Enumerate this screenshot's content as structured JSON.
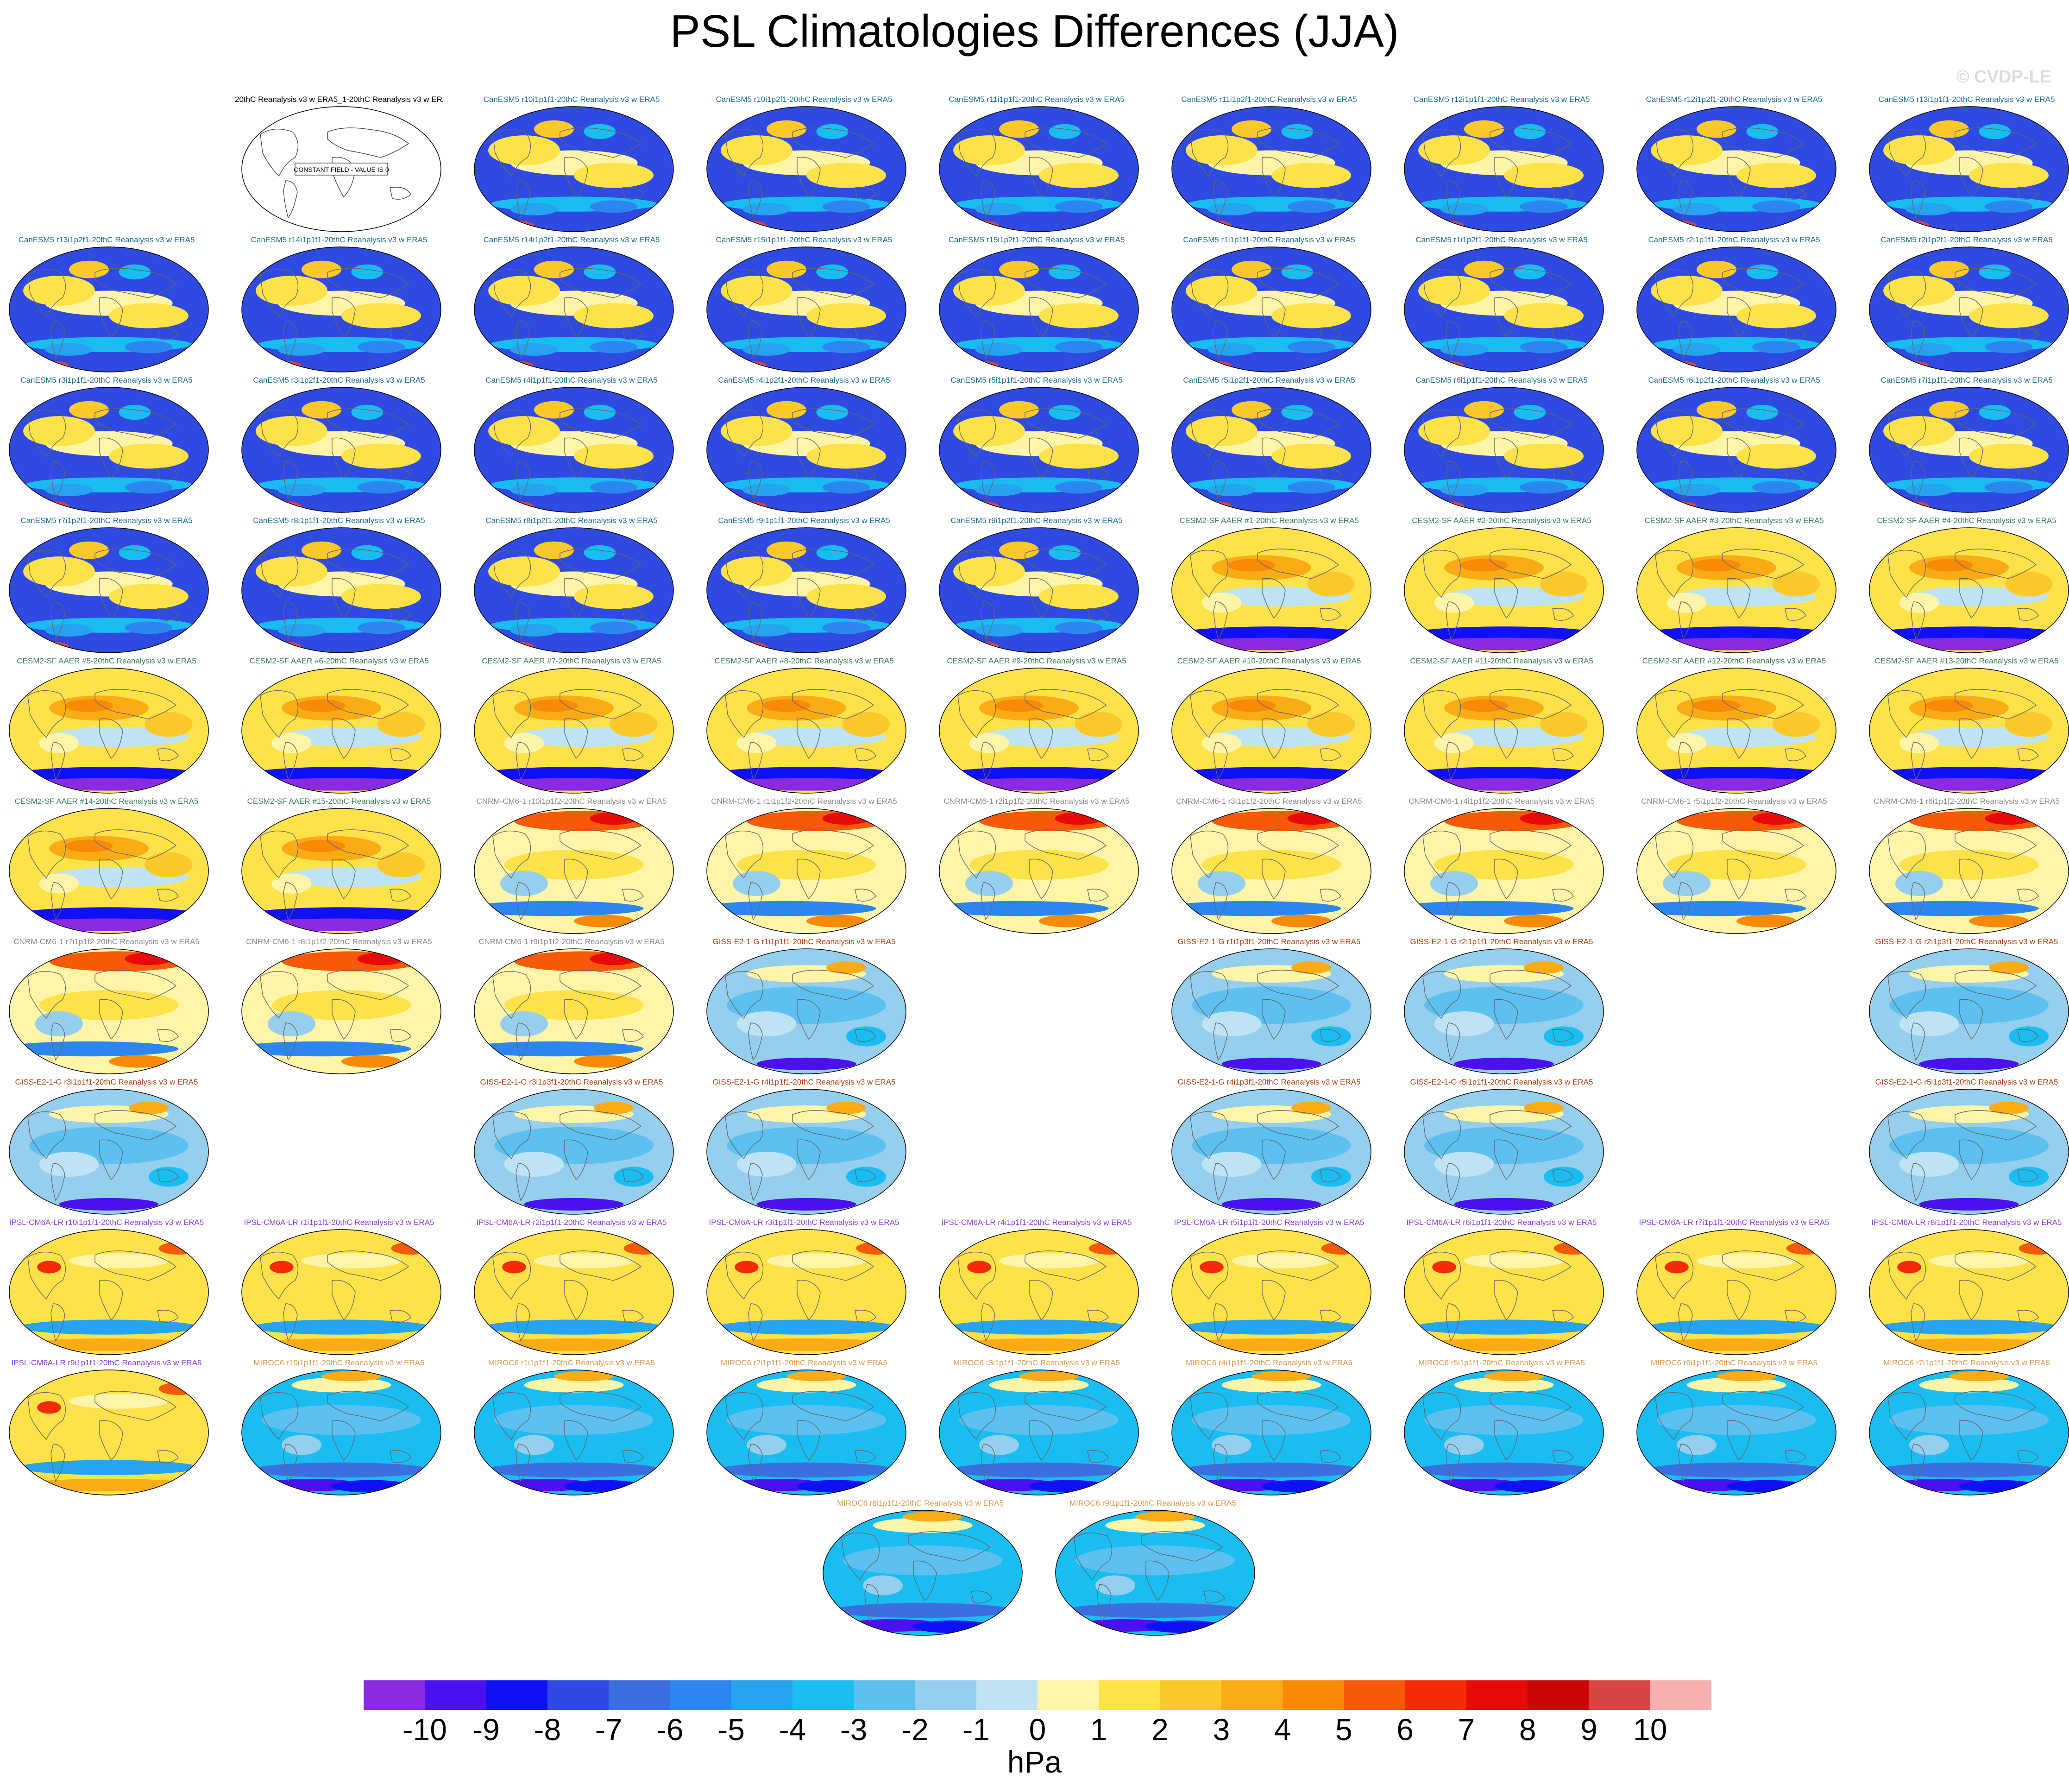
{
  "title": "PSL Climatologies Differences (JJA)",
  "watermark": "© CVDP-LE",
  "colors": {
    "canesm5": "#1a6e8f",
    "cesm2": "#3b7d5a",
    "cnrm": "#8a8a8a",
    "giss": "#b0400f",
    "ipsl": "#8a3fd6",
    "miroc": "#d79a4f",
    "obs": "#000000"
  },
  "panels": [
    {
      "label": "20thC Reanalysis v3 w ERA5_1-20thC Reanalysis v3 w ERA5",
      "row": 0,
      "col": 1,
      "family": "obs",
      "constant": true,
      "note": "CONSTANT FIELD - VALUE IS 0"
    },
    {
      "label": "CanESM5 r10i1p1f1-20thC Reanalysis v3 w ERA5",
      "row": 0,
      "col": 2,
      "family": "canesm5"
    },
    {
      "label": "CanESM5 r10i1p2f1-20thC Reanalysis v3 w ERA5",
      "row": 0,
      "col": 3,
      "family": "canesm5"
    },
    {
      "label": "CanESM5 r11i1p1f1-20thC Reanalysis v3 w ERA5",
      "row": 0,
      "col": 4,
      "family": "canesm5"
    },
    {
      "label": "CanESM5 r11i1p2f1-20thC Reanalysis v3 w ERA5",
      "row": 0,
      "col": 5,
      "family": "canesm5"
    },
    {
      "label": "CanESM5 r12i1p1f1-20thC Reanalysis v3 w ERA5",
      "row": 0,
      "col": 6,
      "family": "canesm5"
    },
    {
      "label": "CanESM5 r12i1p2f1-20thC Reanalysis v3 w ERA5",
      "row": 0,
      "col": 7,
      "family": "canesm5"
    },
    {
      "label": "CanESM5 r13i1p1f1-20thC Reanalysis v3 w ERA5",
      "row": 0,
      "col": 8,
      "family": "canesm5"
    },
    {
      "label": "CanESM5 r13i1p2f1-20thC Reanalysis v3 w ERA5",
      "row": 1,
      "col": 0,
      "family": "canesm5"
    },
    {
      "label": "CanESM5 r14i1p1f1-20thC Reanalysis v3 w ERA5",
      "row": 1,
      "col": 1,
      "family": "canesm5"
    },
    {
      "label": "CanESM5 r14i1p2f1-20thC Reanalysis v3 w ERA5",
      "row": 1,
      "col": 2,
      "family": "canesm5"
    },
    {
      "label": "CanESM5 r15i1p1f1-20thC Reanalysis v3 w ERA5",
      "row": 1,
      "col": 3,
      "family": "canesm5"
    },
    {
      "label": "CanESM5 r15i1p2f1-20thC Reanalysis v3 w ERA5",
      "row": 1,
      "col": 4,
      "family": "canesm5"
    },
    {
      "label": "CanESM5 r1i1p1f1-20thC Reanalysis v3 w ERA5",
      "row": 1,
      "col": 5,
      "family": "canesm5"
    },
    {
      "label": "CanESM5 r1i1p2f1-20thC Reanalysis v3 w ERA5",
      "row": 1,
      "col": 6,
      "family": "canesm5"
    },
    {
      "label": "CanESM5 r2i1p1f1-20thC Reanalysis v3 w ERA5",
      "row": 1,
      "col": 7,
      "family": "canesm5"
    },
    {
      "label": "CanESM5 r2i1p2f1-20thC Reanalysis v3 w ERA5",
      "row": 1,
      "col": 8,
      "family": "canesm5"
    },
    {
      "label": "CanESM5 r3i1p1f1-20thC Reanalysis v3 w ERA5",
      "row": 2,
      "col": 0,
      "family": "canesm5"
    },
    {
      "label": "CanESM5 r3i1p2f1-20thC Reanalysis v3 w ERA5",
      "row": 2,
      "col": 1,
      "family": "canesm5"
    },
    {
      "label": "CanESM5 r4i1p1f1-20thC Reanalysis v3 w ERA5",
      "row": 2,
      "col": 2,
      "family": "canesm5"
    },
    {
      "label": "CanESM5 r4i1p2f1-20thC Reanalysis v3 w ERA5",
      "row": 2,
      "col": 3,
      "family": "canesm5"
    },
    {
      "label": "CanESM5 r5i1p1f1-20thC Reanalysis v3 w ERA5",
      "row": 2,
      "col": 4,
      "family": "canesm5"
    },
    {
      "label": "CanESM5 r5i1p2f1-20thC Reanalysis v3 w ERA5",
      "row": 2,
      "col": 5,
      "family": "canesm5"
    },
    {
      "label": "CanESM5 r6i1p1f1-20thC Reanalysis v3 w ERA5",
      "row": 2,
      "col": 6,
      "family": "canesm5"
    },
    {
      "label": "CanESM5 r6i1p2f1-20thC Reanalysis v3 w ERA5",
      "row": 2,
      "col": 7,
      "family": "canesm5"
    },
    {
      "label": "CanESM5 r7i1p1f1-20thC Reanalysis v3 w ERA5",
      "row": 2,
      "col": 8,
      "family": "canesm5"
    },
    {
      "label": "CanESM5 r7i1p2f1-20thC Reanalysis v3 w ERA5",
      "row": 3,
      "col": 0,
      "family": "canesm5"
    },
    {
      "label": "CanESM5 r8i1p1f1-20thC Reanalysis v3 w ERA5",
      "row": 3,
      "col": 1,
      "family": "canesm5"
    },
    {
      "label": "CanESM5 r8i1p2f1-20thC Reanalysis v3 w ERA5",
      "row": 3,
      "col": 2,
      "family": "canesm5"
    },
    {
      "label": "CanESM5 r9i1p1f1-20thC Reanalysis v3 w ERA5",
      "row": 3,
      "col": 3,
      "family": "canesm5"
    },
    {
      "label": "CanESM5 r9i1p2f1-20thC Reanalysis v3 w ERA5",
      "row": 3,
      "col": 4,
      "family": "canesm5"
    },
    {
      "label": "CESM2-SF AAER #1-20thC Reanalysis v3 w ERA5",
      "row": 3,
      "col": 5,
      "family": "cesm2"
    },
    {
      "label": "CESM2-SF AAER #2-20thC Reanalysis v3 w ERA5",
      "row": 3,
      "col": 6,
      "family": "cesm2"
    },
    {
      "label": "CESM2-SF AAER #3-20thC Reanalysis v3 w ERA5",
      "row": 3,
      "col": 7,
      "family": "cesm2"
    },
    {
      "label": "CESM2-SF AAER #4-20thC Reanalysis v3 w ERA5",
      "row": 3,
      "col": 8,
      "family": "cesm2"
    },
    {
      "label": "CESM2-SF AAER #5-20thC Reanalysis v3 w ERA5",
      "row": 4,
      "col": 0,
      "family": "cesm2"
    },
    {
      "label": "CESM2-SF AAER #6-20thC Reanalysis v3 w ERA5",
      "row": 4,
      "col": 1,
      "family": "cesm2"
    },
    {
      "label": "CESM2-SF AAER #7-20thC Reanalysis v3 w ERA5",
      "row": 4,
      "col": 2,
      "family": "cesm2"
    },
    {
      "label": "CESM2-SF AAER #8-20thC Reanalysis v3 w ERA5",
      "row": 4,
      "col": 3,
      "family": "cesm2"
    },
    {
      "label": "CESM2-SF AAER #9-20thC Reanalysis v3 w ERA5",
      "row": 4,
      "col": 4,
      "family": "cesm2"
    },
    {
      "label": "CESM2-SF AAER #10-20thC Reanalysis v3 w ERA5",
      "row": 4,
      "col": 5,
      "family": "cesm2"
    },
    {
      "label": "CESM2-SF AAER #11-20thC Reanalysis v3 w ERA5",
      "row": 4,
      "col": 6,
      "family": "cesm2"
    },
    {
      "label": "CESM2-SF AAER #12-20thC Reanalysis v3 w ERA5",
      "row": 4,
      "col": 7,
      "family": "cesm2"
    },
    {
      "label": "CESM2-SF AAER #13-20thC Reanalysis v3 w ERA5",
      "row": 4,
      "col": 8,
      "family": "cesm2"
    },
    {
      "label": "CESM2-SF AAER #14-20thC Reanalysis v3 w ERA5",
      "row": 5,
      "col": 0,
      "family": "cesm2"
    },
    {
      "label": "CESM2-SF AAER #15-20thC Reanalysis v3 w ERA5",
      "row": 5,
      "col": 1,
      "family": "cesm2"
    },
    {
      "label": "CNRM-CM6-1 r10i1p1f2-20thC Reanalysis v3 w ERA5",
      "row": 5,
      "col": 2,
      "family": "cnrm"
    },
    {
      "label": "CNRM-CM6-1 r1i1p1f2-20thC Reanalysis v3 w ERA5",
      "row": 5,
      "col": 3,
      "family": "cnrm"
    },
    {
      "label": "CNRM-CM6-1 r2i1p1f2-20thC Reanalysis v3 w ERA5",
      "row": 5,
      "col": 4,
      "family": "cnrm"
    },
    {
      "label": "CNRM-CM6-1 r3i1p1f2-20thC Reanalysis v3 w ERA5",
      "row": 5,
      "col": 5,
      "family": "cnrm"
    },
    {
      "label": "CNRM-CM6-1 r4i1p1f2-20thC Reanalysis v3 w ERA5",
      "row": 5,
      "col": 6,
      "family": "cnrm"
    },
    {
      "label": "CNRM-CM6-1 r5i1p1f2-20thC Reanalysis v3 w ERA5",
      "row": 5,
      "col": 7,
      "family": "cnrm"
    },
    {
      "label": "CNRM-CM6-1 r6i1p1f2-20thC Reanalysis v3 w ERA5",
      "row": 5,
      "col": 8,
      "family": "cnrm"
    },
    {
      "label": "CNRM-CM6-1 r7i1p1f2-20thC Reanalysis v3 w ERA5",
      "row": 6,
      "col": 0,
      "family": "cnrm"
    },
    {
      "label": "CNRM-CM6-1 r8i1p1f2-20thC Reanalysis v3 w ERA5",
      "row": 6,
      "col": 1,
      "family": "cnrm"
    },
    {
      "label": "CNRM-CM6-1 r9i1p1f2-20thC Reanalysis v3 w ERA5",
      "row": 6,
      "col": 2,
      "family": "cnrm"
    },
    {
      "label": "GISS-E2-1-G r1i1p1f1-20thC Reanalysis v3 w ERA5",
      "row": 6,
      "col": 3,
      "family": "giss"
    },
    {
      "label": "GISS-E2-1-G r1i1p3f1-20thC Reanalysis v3 w ERA5",
      "row": 6,
      "col": 5,
      "family": "giss"
    },
    {
      "label": "GISS-E2-1-G r2i1p1f1-20thC Reanalysis v3 w ERA5",
      "row": 6,
      "col": 6,
      "family": "giss"
    },
    {
      "label": "GISS-E2-1-G r2i1p3f1-20thC Reanalysis v3 w ERA5",
      "row": 6,
      "col": 8,
      "family": "giss"
    },
    {
      "label": "GISS-E2-1-G r3i1p1f1-20thC Reanalysis v3 w ERA5",
      "row": 7,
      "col": 0,
      "family": "giss"
    },
    {
      "label": "GISS-E2-1-G r3i1p3f1-20thC Reanalysis v3 w ERA5",
      "row": 7,
      "col": 2,
      "family": "giss"
    },
    {
      "label": "GISS-E2-1-G r4i1p1f1-20thC Reanalysis v3 w ERA5",
      "row": 7,
      "col": 3,
      "family": "giss"
    },
    {
      "label": "GISS-E2-1-G r4i1p3f1-20thC Reanalysis v3 w ERA5",
      "row": 7,
      "col": 5,
      "family": "giss"
    },
    {
      "label": "GISS-E2-1-G r5i1p1f1-20thC Reanalysis v3 w ERA5",
      "row": 7,
      "col": 6,
      "family": "giss"
    },
    {
      "label": "GISS-E2-1-G r5i1p3f1-20thC Reanalysis v3 w ERA5",
      "row": 7,
      "col": 8,
      "family": "giss"
    },
    {
      "label": "IPSL-CM6A-LR r10i1p1f1-20thC Reanalysis v3 w ERA5",
      "row": 8,
      "col": 0,
      "family": "ipsl"
    },
    {
      "label": "IPSL-CM6A-LR r1i1p1f1-20thC Reanalysis v3 w ERA5",
      "row": 8,
      "col": 1,
      "family": "ipsl"
    },
    {
      "label": "IPSL-CM6A-LR r2i1p1f1-20thC Reanalysis v3 w ERA5",
      "row": 8,
      "col": 2,
      "family": "ipsl"
    },
    {
      "label": "IPSL-CM6A-LR r3i1p1f1-20thC Reanalysis v3 w ERA5",
      "row": 8,
      "col": 3,
      "family": "ipsl"
    },
    {
      "label": "IPSL-CM6A-LR r4i1p1f1-20thC Reanalysis v3 w ERA5",
      "row": 8,
      "col": 4,
      "family": "ipsl"
    },
    {
      "label": "IPSL-CM6A-LR r5i1p1f1-20thC Reanalysis v3 w ERA5",
      "row": 8,
      "col": 5,
      "family": "ipsl"
    },
    {
      "label": "IPSL-CM6A-LR r6i1p1f1-20thC Reanalysis v3 w ERA5",
      "row": 8,
      "col": 6,
      "family": "ipsl"
    },
    {
      "label": "IPSL-CM6A-LR r7i1p1f1-20thC Reanalysis v3 w ERA5",
      "row": 8,
      "col": 7,
      "family": "ipsl"
    },
    {
      "label": "IPSL-CM6A-LR r8i1p1f1-20thC Reanalysis v3 w ERA5",
      "row": 8,
      "col": 8,
      "family": "ipsl"
    },
    {
      "label": "IPSL-CM6A-LR r9i1p1f1-20thC Reanalysis v3 w ERA5",
      "row": 9,
      "col": 0,
      "family": "ipsl"
    },
    {
      "label": "MIROC6 r10i1p1f1-20thC Reanalysis v3 w ERA5",
      "row": 9,
      "col": 1,
      "family": "miroc"
    },
    {
      "label": "MIROC6 r1i1p1f1-20thC Reanalysis v3 w ERA5",
      "row": 9,
      "col": 2,
      "family": "miroc"
    },
    {
      "label": "MIROC6 r2i1p1f1-20thC Reanalysis v3 w ERA5",
      "row": 9,
      "col": 3,
      "family": "miroc"
    },
    {
      "label": "MIROC6 r3i1p1f1-20thC Reanalysis v3 w ERA5",
      "row": 9,
      "col": 4,
      "family": "miroc"
    },
    {
      "label": "MIROC6 r4i1p1f1-20thC Reanalysis v3 w ERA5",
      "row": 9,
      "col": 5,
      "family": "miroc"
    },
    {
      "label": "MIROC6 r5i1p1f1-20thC Reanalysis v3 w ERA5",
      "row": 9,
      "col": 6,
      "family": "miroc"
    },
    {
      "label": "MIROC6 r6i1p1f1-20thC Reanalysis v3 w ERA5",
      "row": 9,
      "col": 7,
      "family": "miroc"
    },
    {
      "label": "MIROC6 r7i1p1f1-20thC Reanalysis v3 w ERA5",
      "row": 9,
      "col": 8,
      "family": "miroc"
    },
    {
      "label": "MIROC6 r8i1p1f1-20thC Reanalysis v3 w ERA5",
      "row": 10,
      "col": 3.5,
      "family": "miroc"
    },
    {
      "label": "MIROC6 r9i1p1f1-20thC Reanalysis v3 w ERA5",
      "row": 10,
      "col": 4.5,
      "family": "miroc"
    }
  ],
  "chart_data": {
    "type": "heatmap",
    "title": "PSL Climatologies Differences (JJA)",
    "colorbar": {
      "units": "hPa",
      "tick_labels": [
        "-10",
        "-9",
        "-8",
        "-7",
        "-6",
        "-5",
        "-4",
        "-3",
        "-2",
        "-1",
        "0",
        "1",
        "2",
        "3",
        "4",
        "5",
        "6",
        "7",
        "8",
        "9",
        "10"
      ],
      "colors": [
        "#8a2be2",
        "#4b10f0",
        "#1010f5",
        "#2e4ae0",
        "#3b6fe0",
        "#2c86f0",
        "#26a4f0",
        "#19bdf2",
        "#5cc0f0",
        "#96cfee",
        "#bde3f5",
        "#fff5a8",
        "#fde24a",
        "#fdc92a",
        "#fbac15",
        "#f88a08",
        "#f65a08",
        "#f42a08",
        "#e80a08",
        "#c90505",
        "#d84545",
        "#f8b0b0"
      ]
    }
  }
}
